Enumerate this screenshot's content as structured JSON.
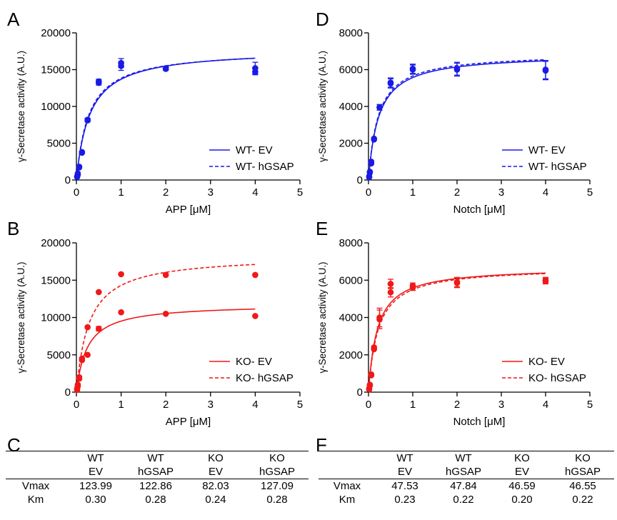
{
  "chart_data": [
    {
      "panel": "A",
      "type": "line",
      "ylabel": "γ-Secretase activity (A.U.)",
      "xlabel": "APP [μM]",
      "xlim": [
        0,
        5
      ],
      "ylim": [
        0,
        20000
      ],
      "xticks": [
        "0",
        "1",
        "2",
        "3",
        "4",
        "5"
      ],
      "yticks": [
        "0",
        "5000",
        "10000",
        "15000",
        "20000"
      ],
      "color": "#1a1ae6",
      "legend": "bottom-right",
      "series": [
        {
          "name": "WT- EV",
          "style": "solid",
          "vmax": 17800,
          "km": 0.3,
          "points": [
            [
              0.016,
              400
            ],
            [
              0.031,
              700
            ],
            [
              0.0625,
              1700
            ],
            [
              0.125,
              3700
            ],
            [
              0.25,
              8100
            ],
            [
              0.5,
              13200
            ],
            [
              1,
              15500
            ],
            [
              2,
              15100
            ],
            [
              4,
              14700
            ]
          ],
          "errors": [
            0,
            0,
            0,
            0,
            200,
            300,
            600,
            200,
            400
          ]
        },
        {
          "name": "WT- hGSAP",
          "style": "dashed",
          "vmax": 17700,
          "km": 0.28,
          "points": [
            [
              0.016,
              500
            ],
            [
              0.031,
              900
            ],
            [
              0.0625,
              1800
            ],
            [
              0.125,
              3800
            ],
            [
              0.25,
              8200
            ],
            [
              0.5,
              13400
            ],
            [
              1,
              15900
            ],
            [
              2,
              15200
            ],
            [
              4,
              15200
            ]
          ],
          "errors": [
            0,
            0,
            0,
            0,
            200,
            300,
            600,
            200,
            800
          ]
        }
      ]
    },
    {
      "panel": "D",
      "type": "line",
      "ylabel": "γ-Secretase activity (A.U.)",
      "xlabel": "Notch [μM]",
      "xlim": [
        0,
        5
      ],
      "ylim": [
        0,
        8000
      ],
      "xticks": [
        "0",
        "1",
        "2",
        "3",
        "4",
        "5"
      ],
      "yticks": [
        "0",
        "2000",
        "4000",
        "6000",
        "8000"
      ],
      "color": "#1a1ae6",
      "legend": "bottom-right",
      "series": [
        {
          "name": "WT- EV",
          "style": "solid",
          "vmax": 6850,
          "km": 0.23,
          "points": [
            [
              0.016,
              150
            ],
            [
              0.031,
              400
            ],
            [
              0.0625,
              900
            ],
            [
              0.125,
              2200
            ],
            [
              0.25,
              3950
            ],
            [
              0.5,
              5250
            ],
            [
              1,
              6000
            ],
            [
              2,
              6000
            ],
            [
              4,
              5950
            ]
          ],
          "errors": [
            0,
            0,
            0,
            0,
            150,
            250,
            250,
            350,
            500
          ]
        },
        {
          "name": "WT- hGSAP",
          "style": "dashed",
          "vmax": 6900,
          "km": 0.22,
          "points": [
            [
              0.016,
              200
            ],
            [
              0.031,
              450
            ],
            [
              0.0625,
              1000
            ],
            [
              0.125,
              2250
            ],
            [
              0.25,
              3950
            ],
            [
              0.5,
              5300
            ],
            [
              1,
              6050
            ],
            [
              2,
              6050
            ],
            [
              4,
              6000
            ]
          ],
          "errors": [
            0,
            0,
            0,
            0,
            150,
            250,
            250,
            350,
            500
          ]
        }
      ]
    },
    {
      "panel": "B",
      "type": "line",
      "ylabel": "γ-Secretase activity (A.U.)",
      "xlabel": "APP [μM]",
      "xlim": [
        0,
        5
      ],
      "ylim": [
        0,
        20000
      ],
      "xticks": [
        "0",
        "1",
        "2",
        "3",
        "4",
        "5"
      ],
      "yticks": [
        "0",
        "5000",
        "10000",
        "15000",
        "20000"
      ],
      "color": "#f01818",
      "legend": "bottom-right",
      "series": [
        {
          "name": "KO- EV",
          "style": "solid",
          "vmax": 11800,
          "km": 0.24,
          "points": [
            [
              0.016,
              300
            ],
            [
              0.031,
              800
            ],
            [
              0.0625,
              1800
            ],
            [
              0.125,
              4300
            ],
            [
              0.25,
              5000
            ],
            [
              0.5,
              8500
            ],
            [
              1,
              10700
            ],
            [
              2,
              10500
            ],
            [
              4,
              10200
            ]
          ],
          "errors": [
            0,
            0,
            0,
            0,
            0,
            300,
            0,
            0,
            0
          ]
        },
        {
          "name": "KO- hGSAP",
          "style": "dashed",
          "vmax": 18300,
          "km": 0.28,
          "points": [
            [
              0.016,
              500
            ],
            [
              0.031,
              1000
            ],
            [
              0.0625,
              2000
            ],
            [
              0.125,
              4500
            ],
            [
              0.25,
              8700
            ],
            [
              0.5,
              13400
            ],
            [
              1,
              15800
            ],
            [
              2,
              15700
            ],
            [
              4,
              15700
            ]
          ],
          "errors": [
            0,
            0,
            0,
            0,
            0,
            0,
            0,
            0,
            0
          ]
        }
      ]
    },
    {
      "panel": "E",
      "type": "line",
      "ylabel": "γ-Secretase activity (A.U.)",
      "xlabel": "Notch [μM]",
      "xlim": [
        0,
        5
      ],
      "ylim": [
        0,
        8000
      ],
      "xticks": [
        "0",
        "1",
        "2",
        "3",
        "4",
        "5"
      ],
      "yticks": [
        "0",
        "2000",
        "4000",
        "6000",
        "8000"
      ],
      "color": "#f01818",
      "legend": "bottom-right",
      "series": [
        {
          "name": "KO- EV",
          "style": "solid",
          "vmax": 6700,
          "km": 0.2,
          "points": [
            [
              0.016,
              150
            ],
            [
              0.031,
              350
            ],
            [
              0.0625,
              900
            ],
            [
              0.125,
              2300
            ],
            [
              0.25,
              3900
            ],
            [
              0.5,
              5350
            ],
            [
              1,
              5600
            ],
            [
              2,
              5850
            ],
            [
              4,
              6000
            ]
          ],
          "errors": [
            0,
            0,
            0,
            0,
            500,
            250,
            150,
            250,
            150
          ]
        },
        {
          "name": "KO- hGSAP",
          "style": "dashed",
          "vmax": 6700,
          "km": 0.22,
          "points": [
            [
              0.016,
              200
            ],
            [
              0.031,
              400
            ],
            [
              0.0625,
              950
            ],
            [
              0.125,
              2400
            ],
            [
              0.25,
              4000
            ],
            [
              0.5,
              5800
            ],
            [
              1,
              5700
            ],
            [
              2,
              5900
            ],
            [
              4,
              5950
            ]
          ],
          "errors": [
            0,
            0,
            0,
            0,
            500,
            250,
            150,
            250,
            150
          ]
        }
      ]
    },
    {
      "panel": "C",
      "type": "table",
      "columns": [
        [
          "WT",
          "EV"
        ],
        [
          "WT",
          "hGSAP"
        ],
        [
          "KO",
          "EV"
        ],
        [
          "KO",
          "hGSAP"
        ]
      ],
      "rows": [
        {
          "label": "Vmax",
          "values": [
            "123.99",
            "122.86",
            "82.03",
            "127.09"
          ]
        },
        {
          "label": "Km",
          "values": [
            "0.30",
            "0.28",
            "0.24",
            "0.28"
          ]
        }
      ]
    },
    {
      "panel": "F",
      "type": "table",
      "columns": [
        [
          "WT",
          "EV"
        ],
        [
          "WT",
          "hGSAP"
        ],
        [
          "KO",
          "EV"
        ],
        [
          "KO",
          "hGSAP"
        ]
      ],
      "rows": [
        {
          "label": "Vmax",
          "values": [
            "47.53",
            "47.84",
            "46.59",
            "46.55"
          ]
        },
        {
          "label": "Km",
          "values": [
            "0.23",
            "0.22",
            "0.20",
            "0.22"
          ]
        }
      ]
    }
  ]
}
